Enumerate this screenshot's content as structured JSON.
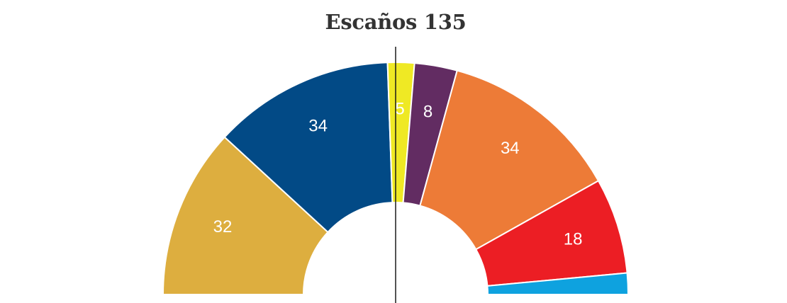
{
  "chart_data": {
    "type": "pie",
    "subtype": "parliament-semicircle",
    "title": "Escaños 135",
    "total": 135,
    "majority_line": true,
    "series": [
      {
        "value": 32,
        "label": "32",
        "color": "#ddae3f"
      },
      {
        "value": 34,
        "label": "34",
        "color": "#024a86"
      },
      {
        "value": 5,
        "label": "5",
        "color": "#efe924"
      },
      {
        "value": 8,
        "label": "8",
        "color": "#622c62"
      },
      {
        "value": 34,
        "label": "34",
        "color": "#ed7b37"
      },
      {
        "value": 18,
        "label": "18",
        "color": "#ec1e24"
      },
      {
        "value": 4,
        "label": "",
        "color": "#0ea2df"
      }
    ]
  }
}
